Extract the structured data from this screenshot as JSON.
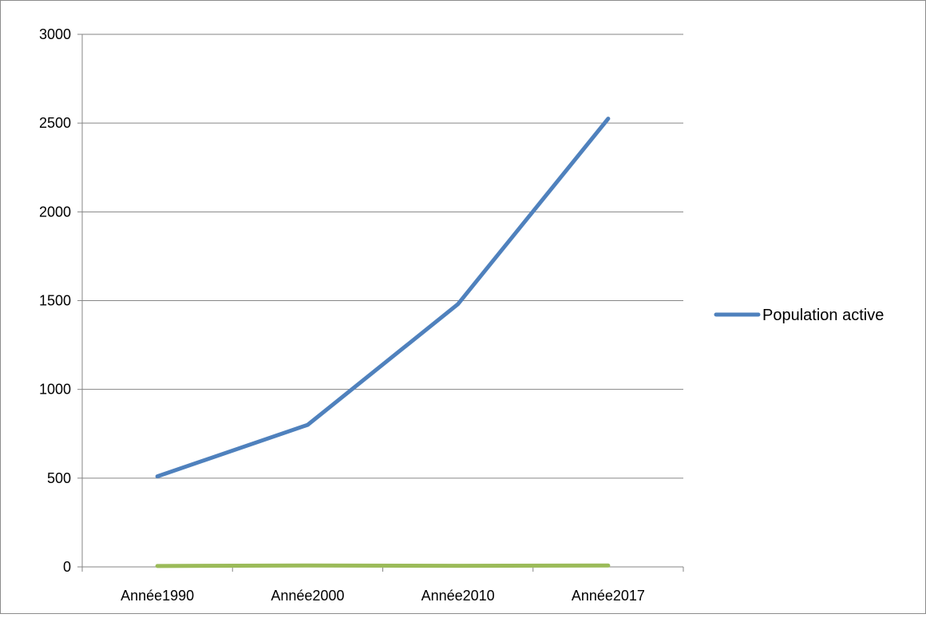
{
  "chart_data": {
    "type": "line",
    "categories": [
      "Année1990",
      "Année2000",
      "Année2010",
      "Année2017"
    ],
    "series": [
      {
        "name": "Population active",
        "values": [
          510,
          800,
          1480,
          2525
        ],
        "color": "#4F81BD",
        "in_legend": true
      },
      {
        "name": "",
        "values": [
          5,
          8,
          6,
          8
        ],
        "color": "#9BBB59",
        "in_legend": false
      }
    ],
    "title": "",
    "xlabel": "",
    "ylabel": "",
    "ylim": [
      0,
      3000
    ],
    "yticks": [
      "0",
      "500",
      "1000",
      "1500",
      "2000",
      "2500",
      "3000"
    ],
    "grid": true,
    "legend_position": "right"
  }
}
